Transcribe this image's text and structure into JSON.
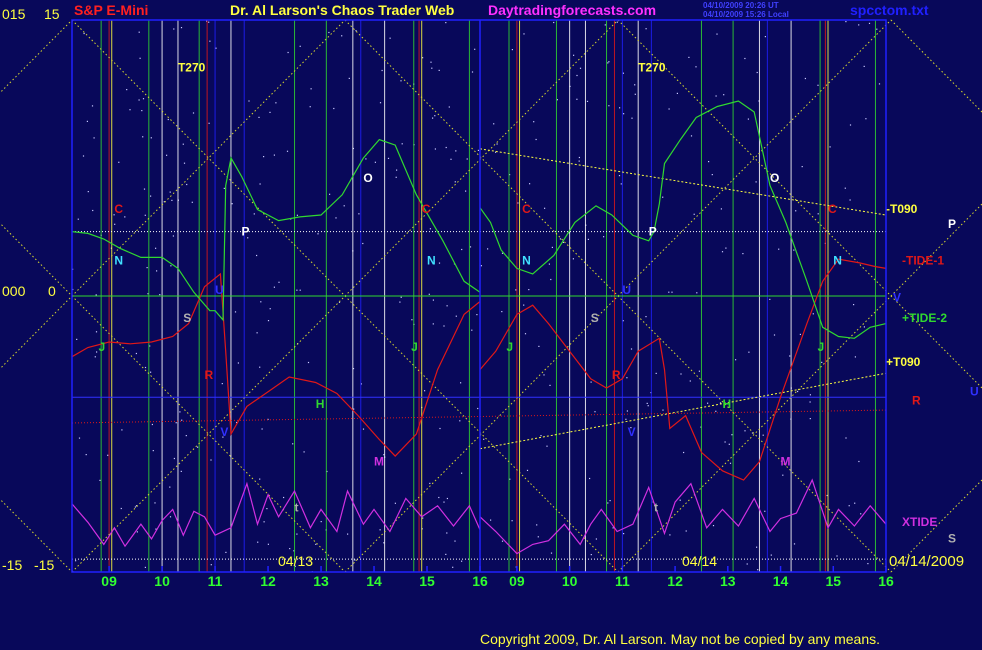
{
  "header": {
    "symbol": "S&P E-Mini",
    "title": "Dr. Al Larson's Chaos Trader Web",
    "site": "Daytradingforecasts.com",
    "stamp_line1": "04/10/2009 20:26 UT",
    "stamp_line2": "04/10/2009 15:26 Local",
    "file": "spcctom.txt"
  },
  "axis_left": {
    "outer": [
      "015",
      "000",
      "-15"
    ],
    "inner": [
      "15",
      "0",
      "-15"
    ]
  },
  "footer": {
    "copyright": "Copyright 2009, Dr. Al Larson. May not be copied by any means."
  },
  "colors": {
    "background": "#08085a",
    "frame": "#2020ff",
    "tide1": "#e01818",
    "tide2": "#30d830",
    "xtide": "#d030e0",
    "yellow": "#ffff40",
    "hour_labels": "#30ff30"
  },
  "chart_data": {
    "type": "line",
    "title": "Dr. Al Larson's Chaos Trader Web",
    "ylim": [
      -15,
      15
    ],
    "y_ticks": [
      15,
      0,
      -15
    ],
    "x_tick_labels": [
      "09",
      "10",
      "11",
      "12",
      "13",
      "14",
      "15",
      "16",
      "09",
      "10",
      "11",
      "12",
      "13",
      "14",
      "15",
      "16"
    ],
    "date_labels": [
      "04/13",
      "04/14",
      "04/14/2009"
    ],
    "x_hours": [
      8.3,
      16
    ],
    "days": [
      "04/13",
      "04/14"
    ],
    "series": [
      {
        "name": "-TIDE-1",
        "color": "#e01818",
        "day1": [
          [
            8.3,
            -3.3
          ],
          [
            8.6,
            -2.8
          ],
          [
            9.0,
            -2.5
          ],
          [
            9.4,
            -2.6
          ],
          [
            9.8,
            -2.5
          ],
          [
            10.2,
            -2.2
          ],
          [
            10.5,
            -1.5
          ],
          [
            10.8,
            0.5
          ],
          [
            11.1,
            1.2
          ],
          [
            11.2,
            -3
          ],
          [
            11.3,
            -7.5
          ],
          [
            11.6,
            -6
          ],
          [
            12.0,
            -5.2
          ],
          [
            12.4,
            -4.4
          ],
          [
            12.9,
            -4.7
          ],
          [
            13.3,
            -5.3
          ],
          [
            13.7,
            -6.5
          ],
          [
            14.1,
            -7.8
          ],
          [
            14.4,
            -8.7
          ],
          [
            14.8,
            -7.5
          ],
          [
            15.2,
            -4
          ],
          [
            15.7,
            -1
          ],
          [
            16.0,
            -0.3
          ]
        ],
        "day2": [
          [
            8.3,
            -4
          ],
          [
            8.6,
            -3
          ],
          [
            9.0,
            -1
          ],
          [
            9.3,
            -0.5
          ],
          [
            9.6,
            -1.5
          ],
          [
            10.0,
            -3
          ],
          [
            10.4,
            -4.5
          ],
          [
            10.7,
            -5
          ],
          [
            11.0,
            -4.5
          ],
          [
            11.3,
            -3
          ],
          [
            11.7,
            -2.3
          ],
          [
            11.8,
            -4
          ],
          [
            11.9,
            -7.2
          ],
          [
            12.2,
            -6.5
          ],
          [
            12.5,
            -8.5
          ],
          [
            12.9,
            -9.5
          ],
          [
            13.3,
            -10
          ],
          [
            13.6,
            -9
          ],
          [
            14.0,
            -5.5
          ],
          [
            14.5,
            -1.5
          ],
          [
            14.8,
            0.8
          ],
          [
            15.1,
            2
          ],
          [
            15.5,
            1.8
          ],
          [
            15.8,
            1.6
          ],
          [
            16.0,
            1.5
          ]
        ]
      },
      {
        "name": "+TIDE-2",
        "color": "#30d830",
        "day1": [
          [
            8.3,
            3.5
          ],
          [
            8.6,
            3.4
          ],
          [
            8.9,
            3.1
          ],
          [
            9.2,
            2.6
          ],
          [
            9.6,
            2.1
          ],
          [
            10.0,
            2.1
          ],
          [
            10.3,
            1.5
          ],
          [
            10.6,
            0.2
          ],
          [
            10.9,
            -0.8
          ],
          [
            11.0,
            -0.8
          ],
          [
            11.15,
            -1.3
          ],
          [
            11.2,
            6
          ],
          [
            11.3,
            7.5
          ],
          [
            11.5,
            6.5
          ],
          [
            11.8,
            4.7
          ],
          [
            12.2,
            4.1
          ],
          [
            12.6,
            4.3
          ],
          [
            13.0,
            4.4
          ],
          [
            13.4,
            5.5
          ],
          [
            13.8,
            7.5
          ],
          [
            14.1,
            8.5
          ],
          [
            14.4,
            8.2
          ],
          [
            14.8,
            5.5
          ],
          [
            15.3,
            3
          ],
          [
            15.7,
            0.8
          ],
          [
            16.0,
            0.2
          ]
        ],
        "day2": [
          [
            8.3,
            4.8
          ],
          [
            8.5,
            4.0
          ],
          [
            8.7,
            2.5
          ],
          [
            9.0,
            1.5
          ],
          [
            9.3,
            1.2
          ],
          [
            9.7,
            2.2
          ],
          [
            10.1,
            4
          ],
          [
            10.5,
            4.9
          ],
          [
            10.8,
            4.4
          ],
          [
            11.2,
            3.3
          ],
          [
            11.5,
            3
          ],
          [
            11.6,
            3.5
          ],
          [
            11.7,
            5
          ],
          [
            11.8,
            7.2
          ],
          [
            12.1,
            8.5
          ],
          [
            12.4,
            9.7
          ],
          [
            12.8,
            10.3
          ],
          [
            13.2,
            10.6
          ],
          [
            13.5,
            10
          ],
          [
            13.8,
            6
          ],
          [
            14.1,
            4
          ],
          [
            14.5,
            0.8
          ],
          [
            14.8,
            -1.7
          ],
          [
            15.1,
            -2.2
          ],
          [
            15.4,
            -2.3
          ],
          [
            15.7,
            -1.7
          ],
          [
            16.0,
            -1.5
          ]
        ]
      },
      {
        "name": "XTIDE",
        "color": "#d030e0",
        "day1": [
          [
            8.3,
            -11.3
          ],
          [
            8.6,
            -12.3
          ],
          [
            8.9,
            -13.5
          ],
          [
            9.1,
            -12.6
          ],
          [
            9.3,
            -13.6
          ],
          [
            9.6,
            -12.4
          ],
          [
            9.8,
            -13.2
          ],
          [
            10.0,
            -12.2
          ],
          [
            10.2,
            -11.6
          ],
          [
            10.4,
            -13
          ],
          [
            10.6,
            -11.7
          ],
          [
            10.8,
            -12
          ],
          [
            11.0,
            -13
          ],
          [
            11.3,
            -12.6
          ],
          [
            11.6,
            -10.2
          ],
          [
            11.8,
            -12.4
          ],
          [
            12.0,
            -10.8
          ],
          [
            12.2,
            -12
          ],
          [
            12.5,
            -10.6
          ],
          [
            12.8,
            -12.6
          ],
          [
            13.0,
            -11.6
          ],
          [
            13.3,
            -12.8
          ],
          [
            13.5,
            -10.6
          ],
          [
            13.8,
            -12.4
          ],
          [
            14.0,
            -11.6
          ],
          [
            14.3,
            -12.8
          ],
          [
            14.6,
            -11
          ],
          [
            14.9,
            -12
          ],
          [
            15.2,
            -11.4
          ],
          [
            15.5,
            -12.5
          ],
          [
            15.8,
            -11.4
          ],
          [
            16.0,
            -12.7
          ]
        ],
        "day2": [
          [
            8.3,
            -12
          ],
          [
            8.6,
            -12.8
          ],
          [
            9.0,
            -14.0
          ],
          [
            9.3,
            -13.5
          ],
          [
            9.6,
            -13.3
          ],
          [
            9.9,
            -12.4
          ],
          [
            10.2,
            -13.5
          ],
          [
            10.4,
            -12.4
          ],
          [
            10.6,
            -11.6
          ],
          [
            10.9,
            -12.8
          ],
          [
            11.2,
            -12.4
          ],
          [
            11.5,
            -10.4
          ],
          [
            11.8,
            -12.9
          ],
          [
            12.0,
            -11.2
          ],
          [
            12.3,
            -10.2
          ],
          [
            12.6,
            -12.6
          ],
          [
            12.9,
            -11.6
          ],
          [
            13.2,
            -12.5
          ],
          [
            13.5,
            -11
          ],
          [
            13.8,
            -12.8
          ],
          [
            14.0,
            -12.1
          ],
          [
            14.3,
            -11.8
          ],
          [
            14.6,
            -10
          ],
          [
            14.9,
            -12.6
          ],
          [
            15.1,
            -11.6
          ],
          [
            15.4,
            -12.5
          ],
          [
            15.7,
            -11.4
          ],
          [
            16.0,
            -12.4
          ]
        ]
      }
    ],
    "yellow_lines": [
      {
        "name": "-T090",
        "from": [
          "04/14",
          8.3,
          8
        ],
        "to": [
          "04/14",
          16,
          4.4
        ]
      },
      {
        "name": "+T090",
        "from": [
          "04/14",
          8.3,
          -8.3
        ],
        "to": [
          "04/14",
          16,
          -4.2
        ]
      }
    ],
    "markers": [
      {
        "label": "T270",
        "day": "04/13",
        "hour": 10.3,
        "y": 12.2,
        "color": "#ffff40"
      },
      {
        "label": "T270",
        "day": "04/14",
        "hour": 11.3,
        "y": 12.2,
        "color": "#ffff40"
      },
      {
        "label": "C",
        "day": "04/13",
        "hour": 9.1,
        "y": 4.5,
        "color": "#e01818"
      },
      {
        "label": "C",
        "day": "04/13",
        "hour": 14.9,
        "y": 4.5,
        "color": "#e01818"
      },
      {
        "label": "C",
        "day": "04/14",
        "hour": 9.1,
        "y": 4.5,
        "color": "#e01818"
      },
      {
        "label": "C",
        "day": "04/14",
        "hour": 14.9,
        "y": 4.5,
        "color": "#e01818"
      },
      {
        "label": "N",
        "day": "04/13",
        "hour": 9.1,
        "y": 1.7,
        "color": "#40e0ff"
      },
      {
        "label": "N",
        "day": "04/13",
        "hour": 15.0,
        "y": 1.7,
        "color": "#40e0ff"
      },
      {
        "label": "N",
        "day": "04/14",
        "hour": 9.1,
        "y": 1.7,
        "color": "#40e0ff"
      },
      {
        "label": "N",
        "day": "04/14",
        "hour": 15.0,
        "y": 1.7,
        "color": "#40e0ff"
      },
      {
        "label": "P",
        "day": "04/13",
        "hour": 11.5,
        "y": 3.3,
        "color": "#ffffff"
      },
      {
        "label": "P",
        "day": "04/14",
        "hour": 11.5,
        "y": 3.3,
        "color": "#ffffff"
      },
      {
        "label": "O",
        "day": "04/13",
        "hour": 13.8,
        "y": 6.2,
        "color": "#ffffff"
      },
      {
        "label": "O",
        "day": "04/14",
        "hour": 13.8,
        "y": 6.2,
        "color": "#ffffff"
      },
      {
        "label": "U",
        "day": "04/13",
        "hour": 11.0,
        "y": 0.1,
        "color": "#3030ff"
      },
      {
        "label": "U",
        "day": "04/14",
        "hour": 11.0,
        "y": 0.1,
        "color": "#3030ff"
      },
      {
        "label": "S",
        "day": "04/13",
        "hour": 10.4,
        "y": -1.4,
        "color": "#b0b0b0"
      },
      {
        "label": "S",
        "day": "04/14",
        "hour": 10.4,
        "y": -1.4,
        "color": "#b0b0b0"
      },
      {
        "label": "J",
        "day": "04/13",
        "hour": 8.8,
        "y": -3.0,
        "color": "#30d830"
      },
      {
        "label": "J",
        "day": "04/13",
        "hour": 14.7,
        "y": -3.0,
        "color": "#30d830"
      },
      {
        "label": "J",
        "day": "04/14",
        "hour": 8.8,
        "y": -3.0,
        "color": "#30d830"
      },
      {
        "label": "J",
        "day": "04/14",
        "hour": 14.7,
        "y": -3.0,
        "color": "#30d830"
      },
      {
        "label": "R",
        "day": "04/13",
        "hour": 10.8,
        "y": -4.5,
        "color": "#e01818"
      },
      {
        "label": "R",
        "day": "04/14",
        "hour": 10.8,
        "y": -4.5,
        "color": "#e01818"
      },
      {
        "label": "H",
        "day": "04/13",
        "hour": 12.9,
        "y": -6.1,
        "color": "#30d830"
      },
      {
        "label": "H",
        "day": "04/14",
        "hour": 12.9,
        "y": -6.1,
        "color": "#30d830"
      },
      {
        "label": "V",
        "day": "04/13",
        "hour": 11.1,
        "y": -7.6,
        "color": "#3030ff"
      },
      {
        "label": "V",
        "day": "04/14",
        "hour": 11.1,
        "y": -7.6,
        "color": "#3030ff"
      },
      {
        "label": "M",
        "day": "04/13",
        "hour": 14.0,
        "y": -9.2,
        "color": "#d030e0"
      },
      {
        "label": "M",
        "day": "04/14",
        "hour": 14.0,
        "y": -9.2,
        "color": "#d030e0"
      },
      {
        "label": "t",
        "day": "04/13",
        "hour": 12.5,
        "y": -11.7,
        "color": "#b0b0b0"
      },
      {
        "label": "t",
        "day": "04/14",
        "hour": 11.6,
        "y": -11.7,
        "color": "#b0b0b0"
      }
    ],
    "right_labels": [
      {
        "label": "-T090",
        "y": 4.5,
        "color": "#ffff40"
      },
      {
        "label": "P",
        "y": 3.7,
        "color": "#ffffff"
      },
      {
        "label": "-TIDE-1",
        "y": 1.7,
        "color": "#e01818"
      },
      {
        "label": "V",
        "y": -0.3,
        "color": "#3030ff"
      },
      {
        "label": "+TIDE-2",
        "y": -1.4,
        "color": "#30d830"
      },
      {
        "label": "+T090",
        "y": -3.8,
        "color": "#ffff40"
      },
      {
        "label": "R",
        "y": -5.9,
        "color": "#e01818"
      },
      {
        "label": "U",
        "y": -5.4,
        "color": "#3030ff"
      },
      {
        "label": "XTIDE",
        "y": -12.5,
        "color": "#d030e0"
      },
      {
        "label": "S",
        "y": -13.4,
        "color": "#b0b0b0"
      }
    ]
  }
}
